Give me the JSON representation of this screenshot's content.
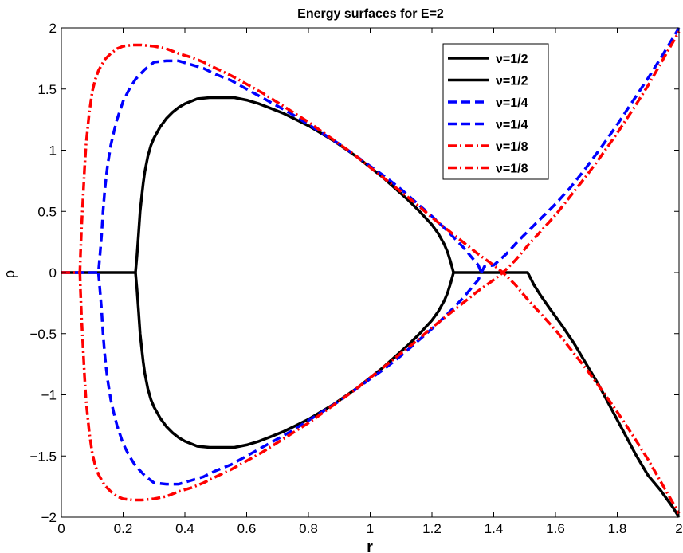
{
  "chart_data": {
    "type": "line",
    "title": "Energy surfaces for E=2",
    "xlabel": "r",
    "ylabel": "ρ",
    "xlim": [
      0,
      2
    ],
    "ylim": [
      -2,
      2
    ],
    "x_ticks": [
      0,
      0.2,
      0.4,
      0.6,
      0.8,
      1,
      1.2,
      1.4,
      1.6,
      1.8,
      2
    ],
    "x_tick_labels": [
      "0",
      "0.2",
      "0.4",
      "0.6",
      "0.8",
      "1",
      "1.2",
      "1.4",
      "1.6",
      "1.8",
      "2"
    ],
    "y_ticks": [
      -2,
      -1.5,
      -1,
      -0.5,
      0,
      0.5,
      1,
      1.5,
      2
    ],
    "y_tick_labels": [
      "−2",
      "−1.5",
      "−1",
      "−0.5",
      "0",
      "0.5",
      "1",
      "1.5",
      "2"
    ],
    "grid": false,
    "legend_position": "top-right",
    "series": [
      {
        "name": "ν=1/2",
        "color": "#000000",
        "style": "solid",
        "x": [
          0,
          0.24,
          0.245,
          0.25,
          0.255,
          0.26,
          0.265,
          0.27,
          0.28,
          0.29,
          0.3,
          0.32,
          0.34,
          0.36,
          0.38,
          0.4,
          0.44,
          0.48,
          0.52,
          0.56,
          0.6,
          0.64,
          0.68,
          0.72,
          0.76,
          0.8,
          0.84,
          0.88,
          0.92,
          0.96,
          1.0,
          1.04,
          1.08,
          1.12,
          1.16,
          1.2,
          1.22,
          1.24,
          1.25,
          1.26,
          1.27
        ],
        "y": [
          0,
          0,
          0.14,
          0.32,
          0.5,
          0.62,
          0.73,
          0.82,
          0.95,
          1.04,
          1.1,
          1.19,
          1.26,
          1.31,
          1.35,
          1.38,
          1.42,
          1.43,
          1.43,
          1.43,
          1.41,
          1.38,
          1.34,
          1.3,
          1.25,
          1.2,
          1.14,
          1.08,
          1.01,
          0.94,
          0.86,
          0.78,
          0.69,
          0.6,
          0.5,
          0.39,
          0.32,
          0.23,
          0.17,
          0.09,
          0
        ]
      },
      {
        "name": "ν=1/2",
        "color": "#000000",
        "style": "solid",
        "x": [
          0.24,
          0.245,
          0.25,
          0.255,
          0.26,
          0.265,
          0.27,
          0.28,
          0.29,
          0.3,
          0.32,
          0.34,
          0.36,
          0.38,
          0.4,
          0.44,
          0.48,
          0.52,
          0.56,
          0.6,
          0.64,
          0.68,
          0.72,
          0.76,
          0.8,
          0.84,
          0.88,
          0.92,
          0.96,
          1.0,
          1.04,
          1.08,
          1.12,
          1.16,
          1.2,
          1.22,
          1.24,
          1.25,
          1.26,
          1.27,
          1.51,
          1.52,
          1.53,
          1.55,
          1.58,
          1.62,
          1.66,
          1.7,
          1.74,
          1.78,
          1.82,
          1.86,
          1.9,
          1.94,
          1.98,
          2.0
        ],
        "y": [
          0,
          -0.14,
          -0.32,
          -0.5,
          -0.62,
          -0.73,
          -0.82,
          -0.95,
          -1.04,
          -1.1,
          -1.19,
          -1.26,
          -1.31,
          -1.35,
          -1.38,
          -1.42,
          -1.43,
          -1.43,
          -1.43,
          -1.41,
          -1.38,
          -1.34,
          -1.3,
          -1.25,
          -1.2,
          -1.14,
          -1.08,
          -1.01,
          -0.94,
          -0.86,
          -0.78,
          -0.69,
          -0.6,
          -0.5,
          -0.39,
          -0.32,
          -0.23,
          -0.17,
          -0.09,
          0,
          0,
          -0.05,
          -0.1,
          -0.18,
          -0.29,
          -0.43,
          -0.58,
          -0.75,
          -0.92,
          -1.11,
          -1.3,
          -1.49,
          -1.66,
          -1.78,
          -1.92,
          -2.0
        ]
      },
      {
        "name": "ν=1/4",
        "color": "#0000ff",
        "style": "dashed",
        "x": [
          0,
          0.12,
          0.125,
          0.13,
          0.135,
          0.14,
          0.145,
          0.15,
          0.16,
          0.17,
          0.18,
          0.2,
          0.22,
          0.24,
          0.27,
          0.3,
          0.34,
          0.38,
          0.42,
          0.46,
          0.5,
          0.55,
          0.6,
          0.65,
          0.7,
          0.75,
          0.8,
          0.85,
          0.9,
          0.95,
          1.0,
          1.05,
          1.1,
          1.15,
          1.2,
          1.25,
          1.3,
          1.33,
          1.35,
          1.36
        ],
        "y": [
          0,
          0,
          0.14,
          0.3,
          0.5,
          0.66,
          0.78,
          0.88,
          1.04,
          1.15,
          1.25,
          1.4,
          1.5,
          1.58,
          1.66,
          1.72,
          1.73,
          1.73,
          1.7,
          1.67,
          1.62,
          1.57,
          1.5,
          1.43,
          1.36,
          1.29,
          1.21,
          1.13,
          1.05,
          0.96,
          0.87,
          0.78,
          0.68,
          0.57,
          0.46,
          0.34,
          0.21,
          0.12,
          0.06,
          0
        ]
      },
      {
        "name": "ν=1/4",
        "color": "#0000ff",
        "style": "dashed",
        "x": [
          0.12,
          0.125,
          0.13,
          0.135,
          0.14,
          0.145,
          0.15,
          0.16,
          0.17,
          0.18,
          0.2,
          0.22,
          0.24,
          0.27,
          0.3,
          0.34,
          0.38,
          0.42,
          0.46,
          0.5,
          0.55,
          0.6,
          0.65,
          0.7,
          0.75,
          0.8,
          0.85,
          0.9,
          0.95,
          1.0,
          1.05,
          1.1,
          1.15,
          1.2,
          1.25,
          1.3,
          1.33,
          1.35,
          1.36,
          1.37,
          1.4,
          1.44,
          1.48,
          1.52,
          1.56,
          1.6,
          1.65,
          1.7,
          1.75,
          1.8,
          1.85,
          1.9,
          1.95,
          2.0
        ],
        "y": [
          0,
          -0.14,
          -0.3,
          -0.5,
          -0.66,
          -0.78,
          -0.88,
          -1.04,
          -1.15,
          -1.25,
          -1.4,
          -1.5,
          -1.58,
          -1.66,
          -1.72,
          -1.73,
          -1.73,
          -1.7,
          -1.67,
          -1.62,
          -1.57,
          -1.5,
          -1.43,
          -1.36,
          -1.29,
          -1.21,
          -1.13,
          -1.05,
          -0.96,
          -0.87,
          -0.78,
          -0.68,
          -0.57,
          -0.46,
          -0.34,
          -0.21,
          -0.12,
          -0.06,
          0,
          0.05,
          0.06,
          0.15,
          0.26,
          0.36,
          0.46,
          0.56,
          0.7,
          0.86,
          1.03,
          1.21,
          1.4,
          1.59,
          1.79,
          2.0
        ]
      },
      {
        "name": "ν=1/8",
        "color": "#ff0000",
        "style": "dashdot",
        "x": [
          0,
          0.06,
          0.062,
          0.065,
          0.07,
          0.075,
          0.08,
          0.09,
          0.1,
          0.11,
          0.12,
          0.14,
          0.16,
          0.18,
          0.2,
          0.23,
          0.26,
          0.3,
          0.34,
          0.38,
          0.42,
          0.46,
          0.5,
          0.55,
          0.6,
          0.65,
          0.7,
          0.75,
          0.8,
          0.85,
          0.9,
          0.95,
          1.0,
          1.05,
          1.1,
          1.15,
          1.2,
          1.25,
          1.3,
          1.35,
          1.4,
          1.43,
          1.47,
          1.51,
          1.55,
          1.6,
          1.65,
          1.7,
          1.75,
          1.8,
          1.85,
          1.9,
          1.95,
          2.0
        ],
        "y": [
          0,
          0,
          0.15,
          0.35,
          0.6,
          0.85,
          1.05,
          1.3,
          1.48,
          1.58,
          1.65,
          1.74,
          1.79,
          1.83,
          1.85,
          1.86,
          1.86,
          1.85,
          1.83,
          1.79,
          1.76,
          1.72,
          1.67,
          1.61,
          1.54,
          1.47,
          1.39,
          1.31,
          1.23,
          1.14,
          1.05,
          0.96,
          0.86,
          0.76,
          0.66,
          0.56,
          0.45,
          0.35,
          0.25,
          0.15,
          0.06,
          0,
          -0.1,
          -0.22,
          -0.33,
          -0.47,
          -0.63,
          -0.79,
          -0.96,
          -1.14,
          -1.33,
          -1.53,
          -1.75,
          -1.97
        ]
      },
      {
        "name": "ν=1/8",
        "color": "#ff0000",
        "style": "dashdot",
        "x": [
          0.06,
          0.062,
          0.065,
          0.07,
          0.075,
          0.08,
          0.09,
          0.1,
          0.11,
          0.12,
          0.14,
          0.16,
          0.18,
          0.2,
          0.23,
          0.26,
          0.3,
          0.34,
          0.38,
          0.42,
          0.46,
          0.5,
          0.55,
          0.6,
          0.65,
          0.7,
          0.75,
          0.8,
          0.85,
          0.9,
          0.95,
          1.0,
          1.05,
          1.1,
          1.15,
          1.2,
          1.25,
          1.3,
          1.35,
          1.4,
          1.43,
          1.47,
          1.51,
          1.55,
          1.6,
          1.65,
          1.7,
          1.75,
          1.8,
          1.85,
          1.9,
          1.95,
          2.0
        ],
        "y": [
          0,
          -0.15,
          -0.35,
          -0.6,
          -0.85,
          -1.05,
          -1.3,
          -1.48,
          -1.58,
          -1.65,
          -1.74,
          -1.79,
          -1.83,
          -1.85,
          -1.86,
          -1.86,
          -1.85,
          -1.83,
          -1.79,
          -1.76,
          -1.72,
          -1.67,
          -1.61,
          -1.54,
          -1.47,
          -1.39,
          -1.31,
          -1.23,
          -1.14,
          -1.05,
          -0.96,
          -0.86,
          -0.76,
          -0.66,
          -0.56,
          -0.45,
          -0.35,
          -0.25,
          -0.15,
          -0.06,
          0,
          0.1,
          0.22,
          0.33,
          0.47,
          0.63,
          0.79,
          0.96,
          1.14,
          1.33,
          1.53,
          1.75,
          1.97
        ]
      }
    ]
  }
}
